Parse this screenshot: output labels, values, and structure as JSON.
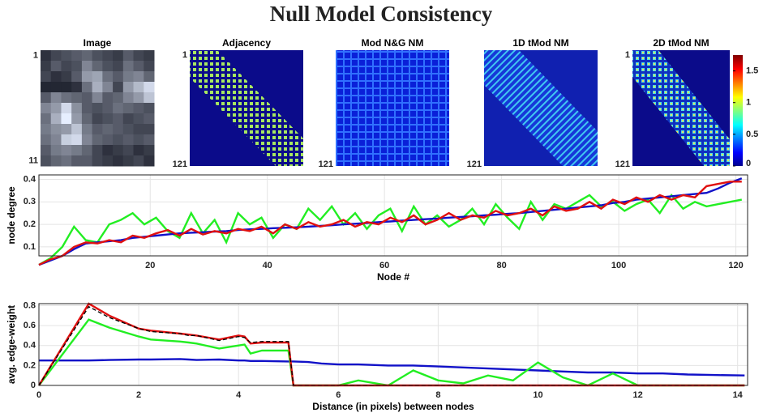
{
  "title": "Null Model Consistency",
  "chart_data": [
    {
      "type": "heatmap",
      "title": "Image",
      "lim": [
        0.5,
        11.5
      ],
      "yticks": [
        1,
        11
      ],
      "values": [
        [
          0.1,
          0.2,
          0.25,
          0.3,
          0.35,
          0.25,
          0.2,
          0.15,
          0.3,
          0.2,
          0.15
        ],
        [
          0.15,
          0.3,
          0.2,
          0.25,
          0.5,
          0.35,
          0.25,
          0.2,
          0.4,
          0.3,
          0.2
        ],
        [
          0.2,
          0.1,
          0.15,
          0.3,
          0.6,
          0.65,
          0.4,
          0.3,
          0.45,
          0.5,
          0.35
        ],
        [
          0.05,
          0.05,
          0.05,
          0.1,
          0.4,
          0.7,
          0.5,
          0.2,
          0.6,
          0.75,
          0.9
        ],
        [
          0.3,
          0.5,
          0.4,
          0.35,
          0.3,
          0.5,
          0.3,
          0.35,
          0.5,
          0.6,
          0.8
        ],
        [
          0.5,
          0.6,
          0.9,
          0.55,
          0.3,
          0.25,
          0.3,
          0.4,
          0.35,
          0.3,
          0.25
        ],
        [
          0.4,
          0.7,
          1.0,
          0.6,
          0.35,
          0.2,
          0.25,
          0.3,
          0.2,
          0.25,
          0.3
        ],
        [
          0.45,
          0.55,
          0.6,
          0.8,
          0.45,
          0.3,
          0.35,
          0.3,
          0.25,
          0.2,
          0.2
        ],
        [
          0.4,
          0.5,
          0.85,
          0.9,
          0.5,
          0.35,
          0.3,
          0.25,
          0.3,
          0.25,
          0.3
        ],
        [
          0.3,
          0.45,
          0.5,
          0.45,
          0.35,
          0.2,
          0.1,
          0.15,
          0.2,
          0.1,
          0.15
        ],
        [
          0.25,
          0.35,
          0.4,
          0.3,
          0.3,
          0.2,
          0.15,
          0.1,
          0.15,
          0.2,
          0.1
        ]
      ]
    },
    {
      "type": "matrix",
      "title": "Adjacency",
      "title_color": "#000000",
      "lim": [
        1,
        121
      ],
      "yticks": [
        1,
        121
      ]
    },
    {
      "type": "matrix",
      "title": "Mod N&G NM",
      "title_color": "#1010d0",
      "lim": [
        1,
        121
      ],
      "yticks": [
        121
      ]
    },
    {
      "type": "matrix",
      "title": "1D tMod NM",
      "title_color": "#22ee22",
      "lim": [
        1,
        121
      ],
      "yticks": [
        121
      ]
    },
    {
      "type": "matrix",
      "title": "2D tMod NM",
      "title_color": "#ee1111",
      "lim": [
        1,
        121
      ],
      "yticks": [
        1,
        121
      ]
    },
    {
      "type": "colorbar",
      "ylim": [
        0,
        1.75
      ],
      "yticks": [
        0,
        0.5,
        1,
        1.5
      ]
    },
    {
      "type": "line",
      "ylabel": "node degree",
      "xlabel": "Node #",
      "grid": true,
      "xlim": [
        1,
        122
      ],
      "xticks": [
        20,
        40,
        60,
        80,
        100,
        120
      ],
      "ylim": [
        0.06,
        0.42
      ],
      "yticks": [
        0.1,
        0.2,
        0.3,
        0.4
      ],
      "x": [
        1,
        3,
        5,
        7,
        9,
        11,
        13,
        15,
        17,
        19,
        21,
        23,
        25,
        27,
        29,
        31,
        33,
        35,
        37,
        39,
        41,
        43,
        45,
        47,
        49,
        51,
        53,
        55,
        57,
        59,
        61,
        63,
        65,
        67,
        69,
        71,
        73,
        75,
        77,
        79,
        81,
        83,
        85,
        87,
        89,
        91,
        93,
        95,
        97,
        99,
        101,
        103,
        105,
        107,
        109,
        111,
        113,
        115,
        117,
        119,
        121
      ],
      "series": [
        {
          "color": "#22ee22",
          "values": [
            0.02,
            0.05,
            0.1,
            0.19,
            0.13,
            0.12,
            0.2,
            0.22,
            0.25,
            0.2,
            0.23,
            0.17,
            0.14,
            0.25,
            0.16,
            0.22,
            0.12,
            0.25,
            0.2,
            0.23,
            0.14,
            0.2,
            0.18,
            0.27,
            0.22,
            0.28,
            0.2,
            0.25,
            0.18,
            0.24,
            0.27,
            0.17,
            0.28,
            0.2,
            0.24,
            0.19,
            0.22,
            0.27,
            0.2,
            0.29,
            0.23,
            0.18,
            0.3,
            0.22,
            0.29,
            0.27,
            0.3,
            0.33,
            0.28,
            0.3,
            0.26,
            0.29,
            0.31,
            0.25,
            0.33,
            0.27,
            0.3,
            0.28,
            0.29,
            0.3,
            0.31
          ]
        },
        {
          "color": "#1111c8",
          "values": [
            0.02,
            0.04,
            0.06,
            0.09,
            0.115,
            0.12,
            0.125,
            0.13,
            0.14,
            0.145,
            0.15,
            0.155,
            0.16,
            0.163,
            0.165,
            0.168,
            0.17,
            0.175,
            0.178,
            0.18,
            0.183,
            0.185,
            0.187,
            0.19,
            0.193,
            0.196,
            0.2,
            0.203,
            0.206,
            0.21,
            0.213,
            0.217,
            0.22,
            0.223,
            0.226,
            0.23,
            0.233,
            0.236,
            0.24,
            0.243,
            0.247,
            0.25,
            0.255,
            0.26,
            0.265,
            0.27,
            0.275,
            0.28,
            0.285,
            0.295,
            0.3,
            0.31,
            0.315,
            0.32,
            0.325,
            0.33,
            0.335,
            0.34,
            0.36,
            0.385,
            0.405
          ]
        },
        {
          "color": "#e01010",
          "values": [
            0.02,
            0.045,
            0.06,
            0.1,
            0.12,
            0.115,
            0.13,
            0.12,
            0.15,
            0.14,
            0.16,
            0.175,
            0.15,
            0.18,
            0.155,
            0.17,
            0.16,
            0.18,
            0.17,
            0.19,
            0.16,
            0.2,
            0.18,
            0.21,
            0.19,
            0.2,
            0.22,
            0.19,
            0.21,
            0.2,
            0.23,
            0.21,
            0.24,
            0.2,
            0.22,
            0.25,
            0.22,
            0.24,
            0.23,
            0.26,
            0.24,
            0.25,
            0.27,
            0.24,
            0.28,
            0.26,
            0.27,
            0.3,
            0.27,
            0.31,
            0.29,
            0.32,
            0.3,
            0.33,
            0.31,
            0.33,
            0.32,
            0.37,
            0.38,
            0.39,
            0.39
          ]
        }
      ]
    },
    {
      "type": "line",
      "ylabel": "avg. edge-weight",
      "xlabel": "Distance (in pixels) between nodes",
      "grid": true,
      "xlim": [
        0,
        14.2
      ],
      "xticks": [
        0,
        2,
        4,
        6,
        8,
        10,
        12,
        14
      ],
      "ylim": [
        0,
        0.82
      ],
      "yticks": [
        0,
        0.2,
        0.4,
        0.6,
        0.8
      ],
      "x": [
        0,
        1,
        1.41,
        2,
        2.24,
        2.83,
        3,
        3.16,
        3.61,
        4,
        4.12,
        4.24,
        4.47,
        5,
        5.1,
        5.39,
        5.66,
        6,
        6.4,
        7,
        7.5,
        8,
        8.5,
        9,
        9.5,
        10,
        10.5,
        11,
        11.5,
        12,
        12.5,
        13,
        13.5,
        14.14
      ],
      "series": [
        {
          "color": "#1111c8",
          "values": [
            0.25,
            0.25,
            0.255,
            0.26,
            0.26,
            0.265,
            0.26,
            0.255,
            0.26,
            0.25,
            0.25,
            0.245,
            0.245,
            0.24,
            0.24,
            0.235,
            0.22,
            0.21,
            0.21,
            0.2,
            0.2,
            0.19,
            0.18,
            0.17,
            0.16,
            0.15,
            0.14,
            0.13,
            0.13,
            0.12,
            0.12,
            0.11,
            0.105,
            0.1
          ]
        },
        {
          "color": "#22ee22",
          "values": [
            0,
            0.66,
            0.58,
            0.49,
            0.46,
            0.44,
            0.43,
            0.42,
            0.37,
            0.4,
            0.41,
            0.32,
            0.35,
            0.35,
            0,
            0,
            0,
            0,
            0.05,
            0,
            0.15,
            0.05,
            0.02,
            0.1,
            0.05,
            0.23,
            0.08,
            0,
            0.12,
            0,
            0,
            0,
            0,
            0
          ]
        },
        {
          "color": "#e01010",
          "values": [
            0,
            0.82,
            0.7,
            0.57,
            0.55,
            0.52,
            0.51,
            0.5,
            0.46,
            0.5,
            0.49,
            0.42,
            0.43,
            0.43,
            0,
            0,
            0,
            0,
            0,
            0,
            0,
            0,
            0,
            0,
            0,
            0,
            0,
            0,
            0,
            0,
            0,
            0,
            0,
            0
          ]
        },
        {
          "color": "#000000",
          "dashed": true,
          "values": [
            0,
            0.79,
            0.68,
            0.57,
            0.54,
            0.52,
            0.5,
            0.5,
            0.45,
            0.49,
            0.48,
            0.43,
            0.44,
            0.44,
            0,
            0,
            0,
            0,
            0,
            0,
            0,
            0,
            0,
            0,
            0,
            0,
            0,
            0,
            0,
            0,
            0,
            0,
            0,
            0
          ]
        }
      ]
    }
  ]
}
